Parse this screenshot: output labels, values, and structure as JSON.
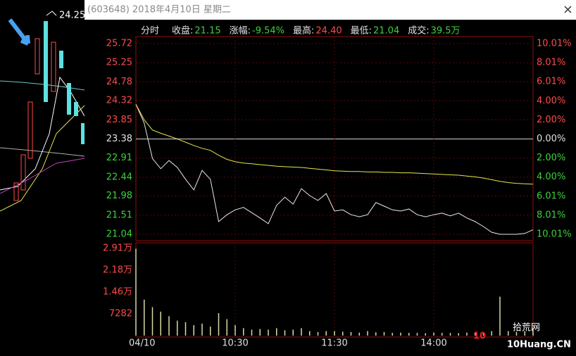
{
  "header": {
    "title": "(603648) 2018年4月10日 星期二"
  },
  "side_label": "24.25",
  "watermark": {
    "big": "10",
    "name": "拾荒网",
    "site": "10Huang.CN"
  },
  "chart_data": [
    {
      "type": "line",
      "mode": "分时",
      "info": [
        {
          "label": "收盘:",
          "value": "21.15",
          "color": "#3cd23c"
        },
        {
          "label": "涨幅:",
          "value": "-9.54%",
          "color": "#3cd23c"
        },
        {
          "label": "最高:",
          "value": "24.40",
          "color": "#ff4a4a"
        },
        {
          "label": "最低:",
          "value": "21.04",
          "color": "#3cd23c"
        },
        {
          "label": "成交:",
          "value": "39.5万",
          "color": "#3cd23c"
        }
      ],
      "categories": [
        "04/10",
        null,
        null,
        null,
        null,
        null,
        null,
        null,
        null,
        null,
        null,
        null,
        "10:30",
        null,
        null,
        null,
        null,
        null,
        null,
        null,
        null,
        null,
        null,
        null,
        "11:30",
        null,
        null,
        null,
        null,
        null,
        null,
        null,
        null,
        null,
        null,
        null,
        "14:00",
        null,
        null,
        null,
        null,
        null,
        null,
        null,
        null,
        null,
        null,
        null,
        null
      ],
      "ylim": [
        21.04,
        25.72
      ],
      "yticks": [
        25.72,
        25.25,
        24.78,
        24.32,
        23.85,
        23.38,
        22.91,
        22.44,
        21.98,
        21.51,
        21.04
      ],
      "base": 23.38,
      "y2lim": [
        -10.01,
        10.01
      ],
      "y2ticks": [
        {
          "value": 10.01,
          "label": "10.01%"
        },
        {
          "value": 8.01,
          "label": "8.01%"
        },
        {
          "value": 6.01,
          "label": "6.01%"
        },
        {
          "value": 4.0,
          "label": "4.00%"
        },
        {
          "value": 2.0,
          "label": "2.00%"
        },
        {
          "value": 0,
          "label": "0.00%"
        },
        {
          "value": -2.0,
          "label": "2.00%"
        },
        {
          "value": -4.0,
          "label": "4.00%"
        },
        {
          "value": -6.01,
          "label": "6.01%"
        },
        {
          "value": -8.01,
          "label": "8.01%"
        },
        {
          "value": -10.01,
          "label": "10.01%"
        }
      ],
      "grid": true,
      "up_color": "#ff4a4a",
      "down_color": "#3cd23c",
      "flat_color": "#e0e0e0",
      "series": [
        {
          "color": "#e8e8e8",
          "values": [
            24.23,
            23.77,
            22.9,
            22.65,
            22.85,
            22.68,
            22.39,
            22.13,
            22.61,
            22.39,
            21.35,
            21.52,
            21.64,
            21.7,
            21.57,
            21.44,
            21.3,
            21.75,
            21.95,
            21.78,
            22.16,
            21.99,
            21.87,
            22.04,
            21.61,
            21.64,
            21.52,
            21.47,
            21.52,
            21.82,
            21.73,
            21.64,
            21.61,
            21.66,
            21.52,
            21.47,
            21.52,
            21.56,
            21.49,
            21.56,
            21.44,
            21.35,
            21.23,
            21.09,
            21.04,
            21.04,
            21.04,
            21.06,
            21.15
          ]
        },
        {
          "color": "#e6e64a",
          "values": [
            24.23,
            23.85,
            23.6,
            23.52,
            23.45,
            23.38,
            23.3,
            23.22,
            23.15,
            23.1,
            22.98,
            22.88,
            22.82,
            22.79,
            22.77,
            22.75,
            22.73,
            22.71,
            22.7,
            22.69,
            22.68,
            22.66,
            22.64,
            22.62,
            22.6,
            22.59,
            22.58,
            22.58,
            22.57,
            22.57,
            22.56,
            22.56,
            22.55,
            22.55,
            22.54,
            22.53,
            22.52,
            22.51,
            22.5,
            22.49,
            22.47,
            22.45,
            22.42,
            22.38,
            22.34,
            22.31,
            22.29,
            22.28,
            22.27
          ]
        }
      ]
    },
    {
      "type": "bar",
      "ylim": [
        0,
        29128
      ],
      "yticks": [
        {
          "value": 29128,
          "label": "2.91万"
        },
        {
          "value": 21846,
          "label": "2.18万"
        },
        {
          "value": 14564,
          "label": "1.46万"
        },
        7282
      ],
      "color": "#d8d8a8",
      "values": [
        29000,
        12000,
        9500,
        8000,
        6500,
        5000,
        4500,
        3500,
        4000,
        3000,
        7500,
        5500,
        3500,
        2500,
        2000,
        2200,
        2000,
        2500,
        1800,
        2000,
        2500,
        1500,
        1200,
        1500,
        1500,
        1300,
        1200,
        1000,
        1500,
        1100,
        1200,
        900,
        1000,
        900,
        900,
        800,
        1000,
        900,
        900,
        800,
        1000,
        900,
        1100,
        1500,
        13000,
        1500,
        1200,
        1500,
        2500
      ]
    }
  ]
}
